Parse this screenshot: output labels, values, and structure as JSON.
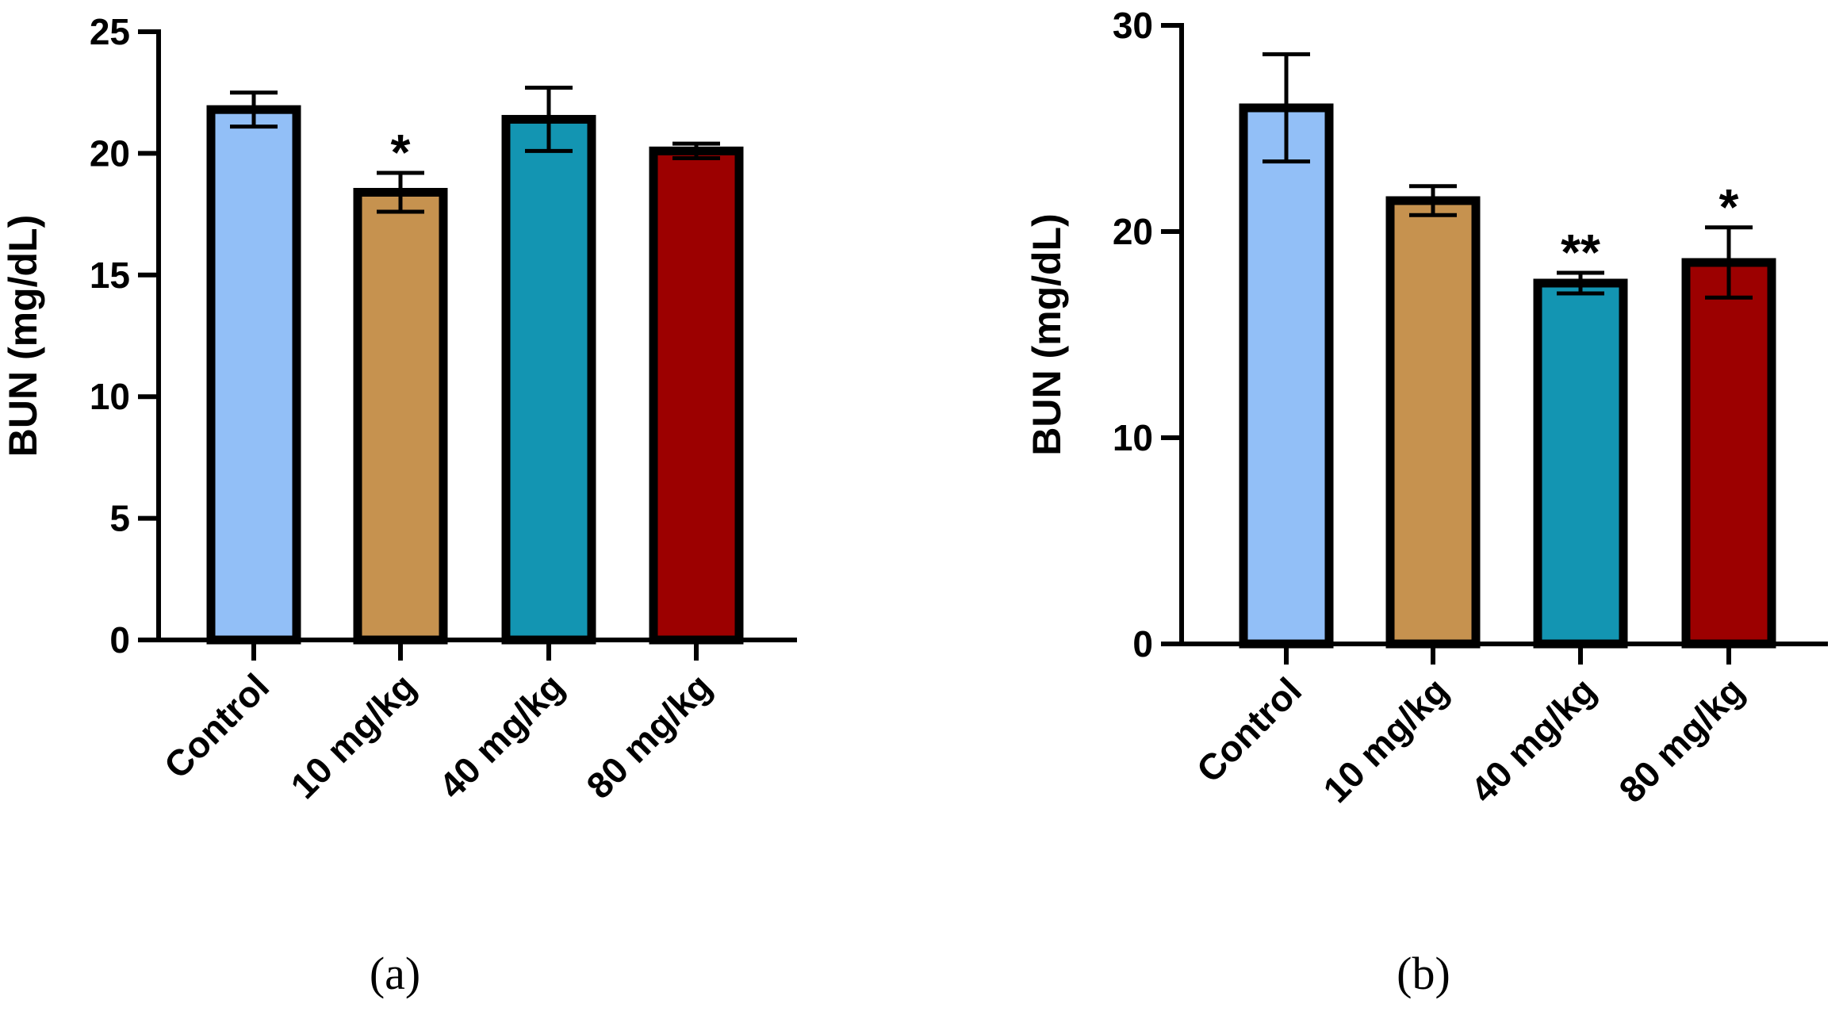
{
  "chart_data": [
    {
      "type": "bar",
      "panel": "(a)",
      "ylabel": "BUN (mg/dL)",
      "xlabel": "",
      "ylim": [
        0,
        25
      ],
      "yticks": [
        0,
        5,
        10,
        15,
        20,
        25
      ],
      "categories": [
        "Control",
        "10 mg/kg",
        "40 mg/kg",
        "80 mg/kg"
      ],
      "values": [
        21.8,
        18.4,
        21.4,
        20.1
      ],
      "errors": [
        0.7,
        0.8,
        1.3,
        0.3
      ],
      "significance": [
        "",
        "*",
        "",
        ""
      ],
      "colors": [
        "#92bff7",
        "#c6924f",
        "#1395b2",
        "#9c0000"
      ]
    },
    {
      "type": "bar",
      "panel": "(b)",
      "ylabel": "BUN (mg/dL)",
      "xlabel": "",
      "ylim": [
        0,
        30
      ],
      "yticks": [
        0,
        10,
        20,
        30
      ],
      "categories": [
        "Control",
        "10 mg/kg",
        "40 mg/kg",
        "80 mg/kg"
      ],
      "values": [
        26.0,
        21.5,
        17.5,
        18.5
      ],
      "errors": [
        2.6,
        0.7,
        0.5,
        1.7
      ],
      "significance": [
        "",
        "",
        "**",
        "*"
      ],
      "colors": [
        "#92bff7",
        "#c6924f",
        "#1395b2",
        "#9c0000"
      ]
    }
  ]
}
